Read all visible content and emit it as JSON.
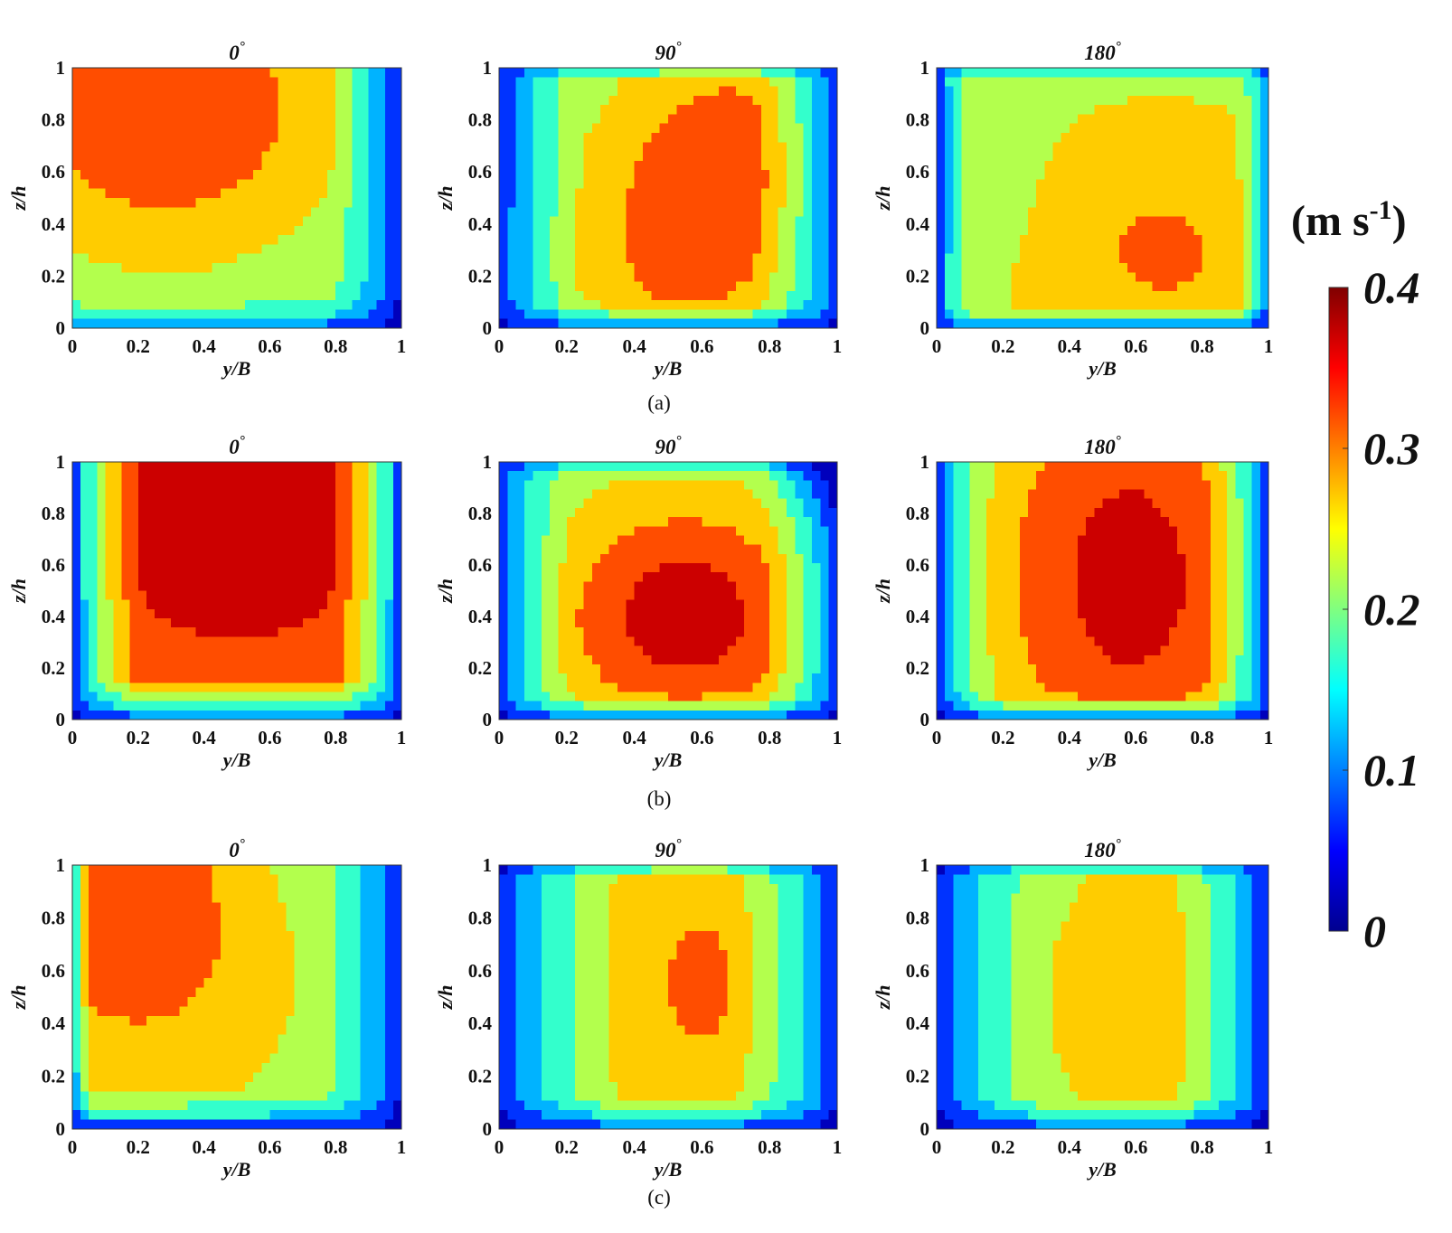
{
  "chart_data": {
    "type": "heatmap",
    "description_unit": "(m s-1)",
    "shared": {
      "xlabel": "y/B",
      "ylabel": "z/h",
      "xlim": [
        0,
        1
      ],
      "ylim": [
        0,
        1
      ],
      "x_ticks": [
        "0",
        "0.2",
        "0.4",
        "0.6",
        "0.8",
        "1"
      ],
      "y_ticks": [
        "0",
        "0.2",
        "0.4",
        "0.6",
        "0.8",
        "1"
      ],
      "degree_symbol": "°"
    },
    "colorbar": {
      "unit_main": "(m s",
      "unit_sup": "-1",
      "unit_close": ")",
      "range": [
        0,
        0.4
      ],
      "ticks": [
        "0",
        "0.1",
        "0.2",
        "0.3",
        "0.4"
      ],
      "colormap": "jet",
      "stops": [
        "#00008f",
        "#0000ff",
        "#0080ff",
        "#00ffff",
        "#80ff80",
        "#ffff00",
        "#ff8000",
        "#ff0000",
        "#800000"
      ]
    },
    "rows": [
      {
        "label": "(a)",
        "panels": [
          {
            "title": "0",
            "field": "a0",
            "peak_velocity": 0.32,
            "peak_location": [
              0.3,
              0.7
            ]
          },
          {
            "title": "90",
            "field": "a90",
            "peak_velocity": 0.32,
            "peak_location": [
              0.65,
              0.6
            ]
          },
          {
            "title": "180",
            "field": "a180",
            "peak_velocity": 0.28,
            "peak_location": [
              0.65,
              0.3
            ]
          }
        ]
      },
      {
        "label": "(b)",
        "panels": [
          {
            "title": "0",
            "field": "b0",
            "peak_velocity": 0.37,
            "peak_location": [
              0.5,
              0.7
            ]
          },
          {
            "title": "90",
            "field": "b90",
            "peak_velocity": 0.35,
            "peak_location": [
              0.55,
              0.45
            ]
          },
          {
            "title": "180",
            "field": "b180",
            "peak_velocity": 0.35,
            "peak_location": [
              0.55,
              0.55
            ]
          }
        ]
      },
      {
        "label": "(c)",
        "panels": [
          {
            "title": "0",
            "field": "c0",
            "peak_velocity": 0.31,
            "peak_location": [
              0.2,
              0.75
            ]
          },
          {
            "title": "90",
            "field": "c90",
            "peak_velocity": 0.28,
            "peak_location": [
              0.6,
              0.55
            ]
          },
          {
            "title": "180",
            "field": "c180",
            "peak_velocity": 0.26,
            "peak_location": [
              0.6,
              0.5
            ]
          }
        ]
      }
    ]
  }
}
